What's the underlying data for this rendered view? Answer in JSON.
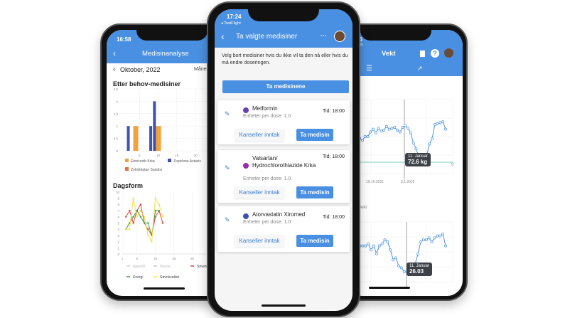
{
  "left": {
    "time": "16:58",
    "title": "Medisinanalyse",
    "period": "Oktober, 2022",
    "period_mode": "Måned",
    "bar_section": "Etter behov-medisiner",
    "line_section": "Dagsform"
  },
  "center": {
    "time": "17:24",
    "back_app": "◂ TestFlight",
    "title": "Ta valgte medisiner",
    "intro": "Velg bort medisiner hvis du ikke vil ta den nå eller hvis du må endre doseringen.",
    "take_all": "Ta medisinene",
    "meds": [
      {
        "name": "Metformin",
        "dose": "Enheter per dose: 1.0",
        "time": "Tid: 18:00",
        "color": "#6a3fb5",
        "cancel": "Kanseller inntak",
        "take": "Ta medisin"
      },
      {
        "name": "Valsartan/ Hydrochlorothiazide Krka",
        "dose": "Enheter per dose: 1.0",
        "time": "Tid: 18:00",
        "color": "#9c27b0",
        "cancel": "Kanseller inntak",
        "take": "Ta medisin"
      },
      {
        "name": "Atorvastatin Xiromed",
        "dose": "Enheter per dose: 1.0",
        "time": "Tid: 18:00",
        "color": "#3f51b5",
        "cancel": "Kanseller inntak",
        "take": "Ta medisin"
      }
    ]
  },
  "right": {
    "time": "16",
    "back_app": "ghts",
    "title": "Vekt",
    "card_title": "ekt",
    "card_sub": "g",
    "overvekt_label": "Overvekt",
    "tooltip1": {
      "date": "11. Januar",
      "value": "72.6 kg"
    },
    "tooltip2": {
      "date": "11. Januar",
      "value": "26.03"
    },
    "goal_tag": "g"
  },
  "accent": "#4a90e2",
  "chart_data": [
    {
      "type": "bar",
      "title": "Etter behov-medisiner",
      "xlim": [
        0,
        27
      ],
      "ylim": [
        0,
        2.5
      ],
      "xticks": [
        "5",
        "10",
        "15",
        "20",
        "25"
      ],
      "yticks": [
        "0",
        "0.5",
        "1",
        "1.5",
        "2",
        "2.5"
      ],
      "grid": true,
      "legend": "bottom",
      "series": [
        {
          "name": "Etoricoxib Krka",
          "color": "#f2a23c",
          "points": [
            [
              4,
              1
            ],
            [
              10,
              1
            ]
          ]
        },
        {
          "name": "Zopiclone Actavis",
          "color": "#3f51b5",
          "points": [
            [
              2,
              1
            ],
            [
              8,
              1
            ],
            [
              9,
              2
            ]
          ]
        },
        {
          "name": "Zolmitriptan Sandoz",
          "color": "#f26b3c",
          "points": []
        }
      ]
    },
    {
      "type": "line",
      "title": "Dagsform",
      "xlim": [
        1,
        28
      ],
      "ylim": [
        0,
        10
      ],
      "xticks": [
        "1",
        "5",
        "10",
        "15",
        "20",
        "25"
      ],
      "yticks": [
        "0",
        "1",
        "2",
        "3",
        "4",
        "5",
        "6",
        "7",
        "8",
        "9",
        "10"
      ],
      "grid": true,
      "legend": "bottom",
      "series": [
        {
          "name": "Appetitt",
          "color": "#c9d3e8",
          "values": []
        },
        {
          "name": "Humør",
          "color": "#c0c4cc",
          "values": []
        },
        {
          "name": "Smerte",
          "color": "#e0443c",
          "x": [
            2,
            3,
            4,
            5,
            6,
            7,
            8,
            9,
            10,
            11,
            12
          ],
          "values": [
            6,
            7,
            5,
            7,
            8,
            5,
            4,
            3,
            6,
            7,
            5
          ]
        },
        {
          "name": "Energi",
          "color": "#3aa04a",
          "x": [
            2,
            3,
            4,
            5,
            6,
            7,
            8,
            9,
            10,
            11
          ],
          "values": [
            4,
            5,
            6,
            7,
            6,
            5,
            5,
            3,
            7,
            7
          ]
        },
        {
          "name": "Søvnkvalitet",
          "color": "#f5e04a",
          "x": [
            2,
            3,
            4,
            5,
            6,
            7,
            8,
            9,
            10,
            11,
            12
          ],
          "values": [
            4,
            4,
            9,
            6,
            7,
            6,
            3,
            2,
            9,
            8,
            6
          ]
        }
      ]
    },
    {
      "type": "line",
      "title": "Vekt",
      "xticks": [
        "19.10.2021",
        "3.1.2022"
      ],
      "series": [
        {
          "color": "#4a90e2",
          "values": [
            74,
            73.5,
            75,
            75.3,
            74.8,
            74.6,
            75,
            75,
            75.5,
            75.8,
            75.4,
            75.9,
            75.6,
            75.7,
            76.1,
            75.8,
            75.9,
            76,
            75.7,
            75.5,
            76,
            76.2,
            75.9,
            75.4,
            74.3,
            73.7,
            72.8,
            72.6,
            72.6,
            73,
            74.2,
            74.8,
            76.3,
            76.4,
            76.5,
            76.6,
            75.8
          ]
        }
      ]
    },
    {
      "type": "line",
      "title": "Overvekt",
      "series": [
        {
          "color": "#4a90e2",
          "values": [
            27.2,
            27,
            27.4,
            27.8,
            27.3,
            27.3,
            27.3,
            27.4,
            27.1,
            27.3,
            26.9,
            27.3,
            27.4,
            27.6,
            27.5,
            27.1,
            26.6,
            26.7,
            26.3,
            26.2,
            26,
            26,
            26.03,
            26.1,
            26.4,
            26.9,
            27.5,
            27.6,
            27.6,
            27.7,
            27.5,
            27.7,
            27.8,
            27.8,
            27.9,
            27.3
          ]
        }
      ]
    }
  ]
}
